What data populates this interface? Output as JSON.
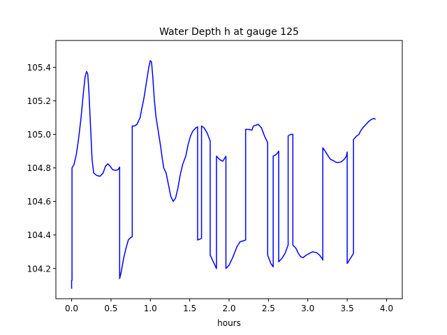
{
  "chart_data": {
    "type": "line",
    "title": "Water Depth h at gauge 125",
    "xlabel": "hours",
    "ylabel": "",
    "xlim": [
      -0.2,
      4.2
    ],
    "ylim": [
      104.02,
      105.56
    ],
    "xticks": [
      0.0,
      0.5,
      1.0,
      1.5,
      2.0,
      2.5,
      3.0,
      3.5,
      4.0
    ],
    "xtick_labels": [
      "0.0",
      "0.5",
      "1.0",
      "1.5",
      "2.0",
      "2.5",
      "3.0",
      "3.5",
      "4.0"
    ],
    "yticks": [
      104.2,
      104.4,
      104.6,
      104.8,
      105.0,
      105.2,
      105.4
    ],
    "ytick_labels": [
      "104.2",
      "104.4",
      "104.6",
      "104.8",
      "105.0",
      "105.2",
      "105.4"
    ],
    "grid": false,
    "series": [
      {
        "color": "#0000ff",
        "points": [
          [
            0.0,
            104.08
          ],
          [
            0.0,
            104.13
          ],
          [
            0.005,
            104.13
          ],
          [
            0.005,
            104.8
          ],
          [
            0.03,
            104.82
          ],
          [
            0.06,
            104.88
          ],
          [
            0.09,
            104.98
          ],
          [
            0.12,
            105.1
          ],
          [
            0.15,
            105.25
          ],
          [
            0.17,
            105.34
          ],
          [
            0.19,
            105.375
          ],
          [
            0.205,
            105.36
          ],
          [
            0.22,
            105.25
          ],
          [
            0.24,
            105.05
          ],
          [
            0.26,
            104.85
          ],
          [
            0.28,
            104.77
          ],
          [
            0.32,
            104.755
          ],
          [
            0.36,
            104.75
          ],
          [
            0.4,
            104.77
          ],
          [
            0.43,
            104.81
          ],
          [
            0.46,
            104.825
          ],
          [
            0.49,
            104.81
          ],
          [
            0.52,
            104.79
          ],
          [
            0.56,
            104.785
          ],
          [
            0.59,
            104.79
          ],
          [
            0.61,
            104.805
          ],
          [
            0.61,
            104.14
          ],
          [
            0.63,
            104.18
          ],
          [
            0.66,
            104.26
          ],
          [
            0.69,
            104.32
          ],
          [
            0.72,
            104.37
          ],
          [
            0.75,
            104.385
          ],
          [
            0.77,
            104.39
          ],
          [
            0.77,
            105.05
          ],
          [
            0.8,
            105.05
          ],
          [
            0.83,
            105.06
          ],
          [
            0.87,
            105.1
          ],
          [
            0.89,
            105.15
          ],
          [
            0.92,
            105.22
          ],
          [
            0.95,
            105.31
          ],
          [
            0.98,
            105.4
          ],
          [
            1.0,
            105.44
          ],
          [
            1.015,
            105.43
          ],
          [
            1.03,
            105.35
          ],
          [
            1.05,
            105.21
          ],
          [
            1.07,
            105.11
          ],
          [
            1.1,
            105.02
          ],
          [
            1.13,
            104.93
          ],
          [
            1.15,
            104.86
          ],
          [
            1.17,
            104.8
          ],
          [
            1.2,
            104.77
          ],
          [
            1.23,
            104.7
          ],
          [
            1.26,
            104.63
          ],
          [
            1.29,
            104.6
          ],
          [
            1.32,
            104.62
          ],
          [
            1.35,
            104.68
          ],
          [
            1.38,
            104.76
          ],
          [
            1.41,
            104.82
          ],
          [
            1.45,
            104.87
          ],
          [
            1.48,
            104.94
          ],
          [
            1.51,
            104.99
          ],
          [
            1.54,
            105.02
          ],
          [
            1.58,
            105.04
          ],
          [
            1.6,
            105.045
          ],
          [
            1.6,
            104.37
          ],
          [
            1.65,
            104.38
          ],
          [
            1.65,
            105.05
          ],
          [
            1.68,
            105.04
          ],
          [
            1.72,
            105.01
          ],
          [
            1.76,
            104.96
          ],
          [
            1.76,
            104.28
          ],
          [
            1.8,
            104.24
          ],
          [
            1.84,
            104.2
          ],
          [
            1.84,
            104.87
          ],
          [
            1.88,
            104.85
          ],
          [
            1.92,
            104.84
          ],
          [
            1.96,
            104.87
          ],
          [
            1.96,
            104.2
          ],
          [
            2.0,
            104.22
          ],
          [
            2.05,
            104.27
          ],
          [
            2.1,
            104.33
          ],
          [
            2.14,
            104.36
          ],
          [
            2.18,
            104.365
          ],
          [
            2.21,
            104.37
          ],
          [
            2.21,
            105.03
          ],
          [
            2.25,
            105.03
          ],
          [
            2.29,
            105.025
          ],
          [
            2.31,
            105.05
          ],
          [
            2.34,
            105.055
          ],
          [
            2.37,
            105.06
          ],
          [
            2.41,
            105.04
          ],
          [
            2.45,
            104.99
          ],
          [
            2.49,
            104.95
          ],
          [
            2.49,
            104.28
          ],
          [
            2.53,
            104.23
          ],
          [
            2.56,
            104.21
          ],
          [
            2.56,
            104.87
          ],
          [
            2.6,
            104.88
          ],
          [
            2.63,
            104.9
          ],
          [
            2.63,
            104.24
          ],
          [
            2.67,
            104.26
          ],
          [
            2.71,
            104.29
          ],
          [
            2.75,
            104.34
          ],
          [
            2.75,
            104.99
          ],
          [
            2.78,
            105.0
          ],
          [
            2.81,
            105.0
          ],
          [
            2.81,
            104.34
          ],
          [
            2.85,
            104.32
          ],
          [
            2.88,
            104.29
          ],
          [
            2.91,
            104.27
          ],
          [
            2.94,
            104.265
          ],
          [
            2.98,
            104.28
          ],
          [
            3.02,
            104.29
          ],
          [
            3.06,
            104.3
          ],
          [
            3.11,
            104.295
          ],
          [
            3.15,
            104.28
          ],
          [
            3.18,
            104.26
          ],
          [
            3.19,
            104.25
          ],
          [
            3.19,
            104.92
          ],
          [
            3.22,
            104.9
          ],
          [
            3.26,
            104.87
          ],
          [
            3.29,
            104.85
          ],
          [
            3.32,
            104.845
          ],
          [
            3.35,
            104.835
          ],
          [
            3.38,
            104.832
          ],
          [
            3.42,
            104.835
          ],
          [
            3.46,
            104.85
          ],
          [
            3.49,
            104.87
          ],
          [
            3.5,
            104.895
          ],
          [
            3.5,
            104.23
          ],
          [
            3.54,
            104.26
          ],
          [
            3.58,
            104.29
          ],
          [
            3.58,
            104.97
          ],
          [
            3.62,
            104.99
          ],
          [
            3.65,
            105.0
          ],
          [
            3.67,
            105.02
          ],
          [
            3.7,
            105.04
          ],
          [
            3.74,
            105.06
          ],
          [
            3.78,
            105.08
          ],
          [
            3.81,
            105.09
          ],
          [
            3.84,
            105.095
          ],
          [
            3.86,
            105.09
          ]
        ]
      }
    ]
  }
}
